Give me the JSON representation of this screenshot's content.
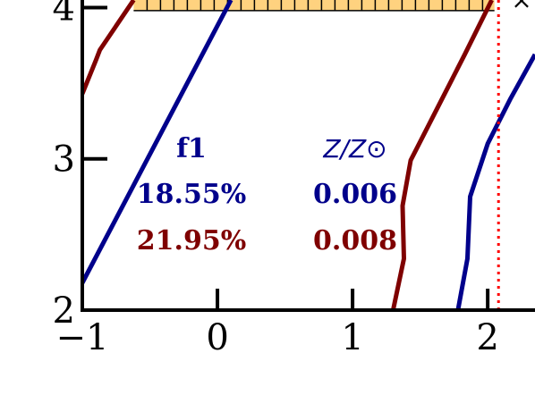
{
  "chart_data": {
    "type": "line",
    "xlim": [
      -1,
      2.35
    ],
    "ylim": [
      2,
      4.05
    ],
    "xticks": [
      {
        "value": -1,
        "label": "−1"
      },
      0,
      1,
      2
    ],
    "yticks": [
      2,
      3,
      4
    ],
    "series": [
      {
        "color": "#00008b",
        "x": [
          -1,
          0.1
        ],
        "values": [
          2.18,
          4.05
        ]
      },
      {
        "color": "#7f0000",
        "x": [
          -1,
          -0.9,
          -0.87,
          -0.62
        ],
        "values": [
          3.43,
          3.65,
          3.72,
          4.05
        ]
      },
      {
        "color": "#7f0000",
        "x": [
          1.3,
          1.38,
          1.37,
          1.43,
          1.63,
          1.83,
          2.03
        ],
        "values": [
          2,
          2.34,
          2.69,
          2.99,
          3.34,
          3.69,
          4.05
        ]
      },
      {
        "color": "#00008b",
        "x": [
          1.78,
          1.85,
          1.87,
          2.0,
          2.17,
          2.35
        ],
        "values": [
          2,
          2.34,
          2.75,
          3.1,
          3.4,
          3.69
        ]
      }
    ],
    "shaded_region": {
      "x": [
        -0.62,
        2.05
      ],
      "y": [
        3.98,
        4.05
      ],
      "color": "#ffd27f"
    },
    "vline": {
      "x": 2.08,
      "color": "#ff0000"
    },
    "table": {
      "header": [
        "f1",
        "Z/Z⊙"
      ],
      "header_color": "#00008b",
      "rows": [
        [
          "18.55%",
          "0.006"
        ],
        [
          "21.95%",
          "0.008"
        ]
      ],
      "row_colors": [
        "#00008b",
        "#7f0000"
      ]
    }
  }
}
